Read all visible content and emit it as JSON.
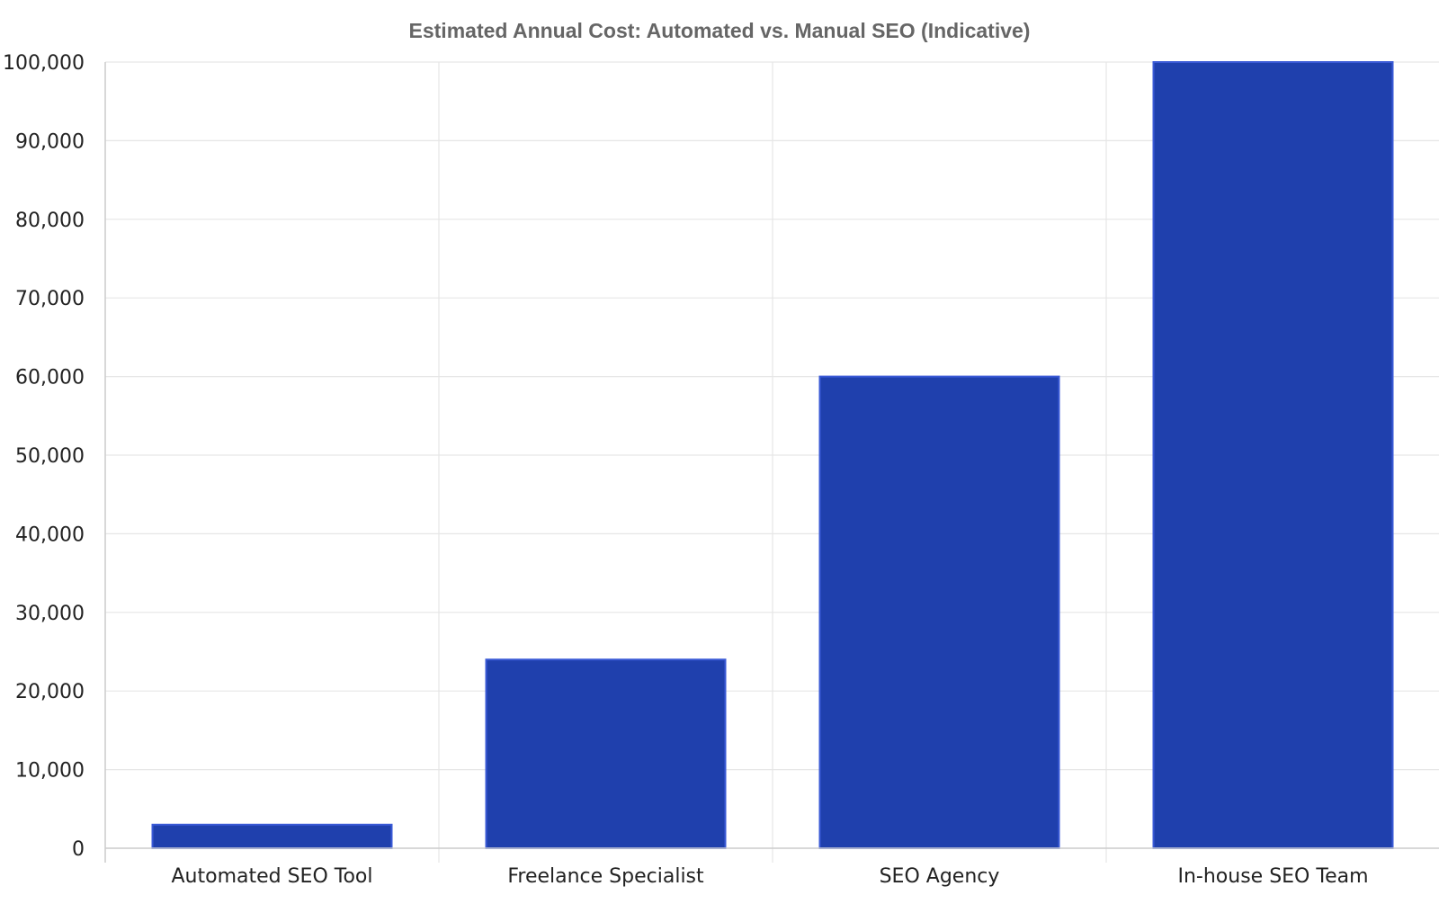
{
  "chart_data": {
    "type": "bar",
    "title": "Estimated Annual Cost: Automated vs. Manual SEO (Indicative)",
    "xlabel": "",
    "ylabel": "",
    "categories": [
      "Automated SEO Tool",
      "Freelance Specialist",
      "SEO Agency",
      "In-house SEO Team"
    ],
    "values": [
      3000,
      24000,
      60000,
      100000
    ],
    "ylim": [
      0,
      100000
    ],
    "yticks": [
      0,
      10000,
      20000,
      30000,
      40000,
      50000,
      60000,
      70000,
      80000,
      90000,
      100000
    ],
    "ytick_labels": [
      "0",
      "10,000",
      "20,000",
      "30,000",
      "40,000",
      "50,000",
      "60,000",
      "70,000",
      "80,000",
      "90,000",
      "100,000"
    ],
    "grid": true,
    "legend": "none",
    "colors": {
      "bar_fill": "#1f40ad",
      "bar_edge": "#3a5ad6",
      "grid": "#e6e6e6",
      "axis": "#cccccc",
      "title": "#666666",
      "text": "#222222"
    }
  }
}
